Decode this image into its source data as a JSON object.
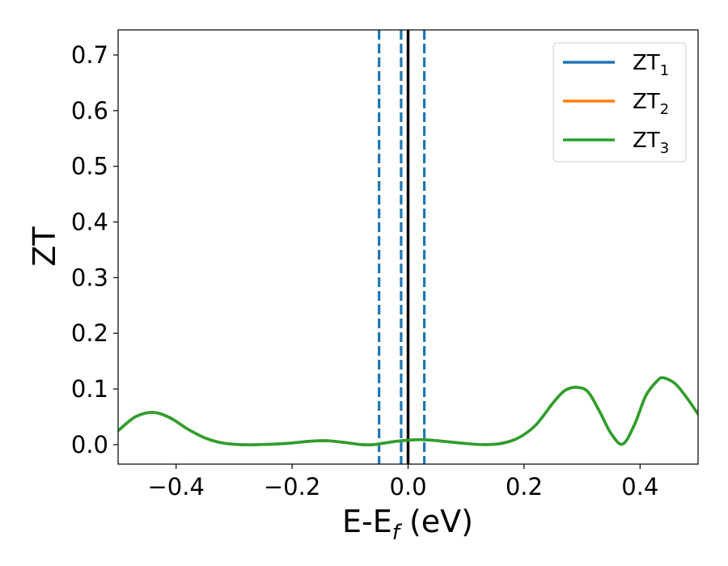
{
  "chart_data": {
    "type": "line",
    "xlabel": "E-E_f (eV)",
    "xlabel_parts": {
      "main": "E-E",
      "sub": "f",
      "rest": " (eV)"
    },
    "ylabel": "ZT",
    "xlim": [
      -0.5,
      0.5
    ],
    "ylim": [
      -0.035,
      0.745
    ],
    "xticks": [
      -0.4,
      -0.2,
      0.0,
      0.2,
      0.4
    ],
    "xtick_labels": [
      "−0.4",
      "−0.2",
      "0.0",
      "0.2",
      "0.4"
    ],
    "yticks": [
      0.0,
      0.1,
      0.2,
      0.3,
      0.4,
      0.5,
      0.6,
      0.7
    ],
    "ytick_labels": [
      "0.0",
      "0.1",
      "0.2",
      "0.3",
      "0.4",
      "0.5",
      "0.6",
      "0.7"
    ],
    "grid": false,
    "legend_position": "top-right",
    "series": [
      {
        "name": "ZT1",
        "label_main": "ZT",
        "label_sub": "1",
        "color": "#1f77b4",
        "x": [
          -0.5,
          -0.47,
          -0.44,
          -0.41,
          -0.38,
          -0.35,
          -0.32,
          -0.29,
          -0.26,
          -0.23,
          -0.2,
          -0.17,
          -0.14,
          -0.11,
          -0.08,
          -0.06,
          -0.04,
          -0.02,
          0.0,
          0.02,
          0.04,
          0.07,
          0.1,
          0.13,
          0.16,
          0.19,
          0.22,
          0.25,
          0.27,
          0.29,
          0.31,
          0.33,
          0.35,
          0.37,
          0.39,
          0.41,
          0.43,
          0.44,
          0.46,
          0.48,
          0.5
        ],
        "y": [
          0.025,
          0.05,
          0.058,
          0.048,
          0.028,
          0.012,
          0.003,
          0.0,
          0.0,
          0.001,
          0.003,
          0.006,
          0.007,
          0.004,
          0.0,
          0.0,
          0.003,
          0.006,
          0.008,
          0.009,
          0.008,
          0.005,
          0.002,
          0.0,
          0.002,
          0.012,
          0.035,
          0.075,
          0.097,
          0.103,
          0.095,
          0.06,
          0.02,
          0.001,
          0.035,
          0.088,
          0.115,
          0.12,
          0.11,
          0.085,
          0.055
        ]
      },
      {
        "name": "ZT2",
        "label_main": "ZT",
        "label_sub": "2",
        "color": "#ff7f0e",
        "x": [
          -0.5,
          -0.47,
          -0.44,
          -0.41,
          -0.38,
          -0.35,
          -0.32,
          -0.29,
          -0.26,
          -0.23,
          -0.2,
          -0.17,
          -0.14,
          -0.11,
          -0.08,
          -0.06,
          -0.04,
          -0.02,
          0.0,
          0.02,
          0.04,
          0.07,
          0.1,
          0.13,
          0.16,
          0.19,
          0.22,
          0.25,
          0.27,
          0.29,
          0.31,
          0.33,
          0.35,
          0.37,
          0.39,
          0.41,
          0.43,
          0.44,
          0.46,
          0.48,
          0.5
        ],
        "y": [
          0.025,
          0.05,
          0.058,
          0.048,
          0.028,
          0.012,
          0.003,
          0.0,
          0.0,
          0.001,
          0.003,
          0.006,
          0.007,
          0.004,
          0.0,
          0.0,
          0.003,
          0.006,
          0.008,
          0.009,
          0.008,
          0.005,
          0.002,
          0.0,
          0.002,
          0.012,
          0.035,
          0.075,
          0.097,
          0.103,
          0.095,
          0.06,
          0.02,
          0.001,
          0.035,
          0.088,
          0.115,
          0.12,
          0.11,
          0.085,
          0.055
        ]
      },
      {
        "name": "ZT3",
        "label_main": "ZT",
        "label_sub": "3",
        "color": "#2ca02c",
        "x": [
          -0.5,
          -0.47,
          -0.44,
          -0.41,
          -0.38,
          -0.35,
          -0.32,
          -0.29,
          -0.26,
          -0.23,
          -0.2,
          -0.17,
          -0.14,
          -0.11,
          -0.08,
          -0.06,
          -0.04,
          -0.02,
          0.0,
          0.02,
          0.04,
          0.07,
          0.1,
          0.13,
          0.16,
          0.19,
          0.22,
          0.25,
          0.27,
          0.29,
          0.31,
          0.33,
          0.35,
          0.37,
          0.39,
          0.41,
          0.43,
          0.44,
          0.46,
          0.48,
          0.5
        ],
        "y": [
          0.025,
          0.05,
          0.058,
          0.048,
          0.028,
          0.012,
          0.003,
          0.0,
          0.0,
          0.001,
          0.003,
          0.006,
          0.007,
          0.004,
          0.0,
          0.0,
          0.003,
          0.006,
          0.008,
          0.009,
          0.008,
          0.005,
          0.002,
          0.0,
          0.002,
          0.012,
          0.035,
          0.075,
          0.097,
          0.103,
          0.095,
          0.06,
          0.02,
          0.001,
          0.035,
          0.088,
          0.115,
          0.12,
          0.11,
          0.085,
          0.055
        ]
      }
    ],
    "vlines": [
      {
        "x": -0.05,
        "style": "dashed",
        "color": "#1f77b4"
      },
      {
        "x": -0.012,
        "style": "dashed",
        "color": "#1f77b4"
      },
      {
        "x": 0.0,
        "style": "solid",
        "color": "#000000"
      },
      {
        "x": 0.028,
        "style": "dashed",
        "color": "#1f77b4"
      }
    ]
  }
}
